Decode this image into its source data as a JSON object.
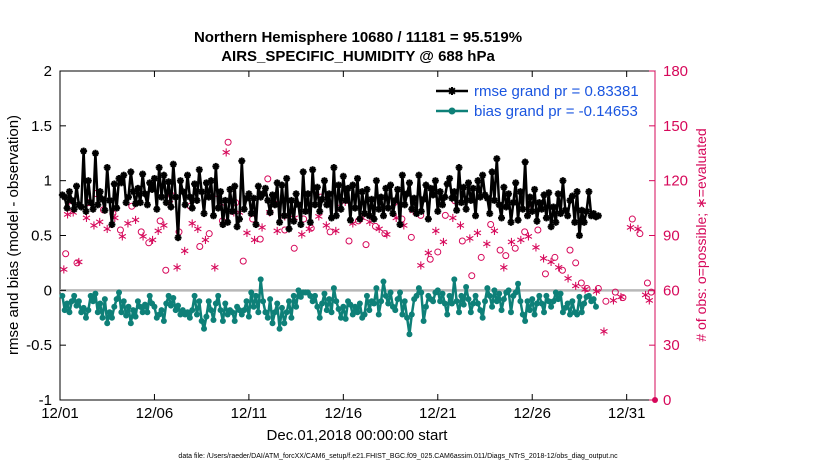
{
  "chart_data": {
    "type": "line",
    "title": "Northern Hemisphere 10680 / 11181 = 95.519%",
    "subtitle": "AIRS_SPECIFIC_HUMIDITY @ 688 hPa",
    "xlabel": "Dec.01,2018 00:00:00 start",
    "ylabel": "rmse and bias (model - observation)",
    "ylabel_right": "# of obs: o=possible; ∗=evaluated",
    "ylim": [
      -1,
      2
    ],
    "ylim_right": [
      0,
      180
    ],
    "xlim": [
      0,
      31.5
    ],
    "x_ticks": [
      0,
      5,
      10,
      15,
      20,
      25,
      30
    ],
    "x_tick_labels": [
      "12/01",
      "12/06",
      "12/11",
      "12/16",
      "12/21",
      "12/26",
      "12/31"
    ],
    "y_ticks": [
      -1,
      -0.5,
      0,
      0.5,
      1,
      1.5,
      2
    ],
    "y_tick_labels": [
      "-1",
      "-0.5",
      "0",
      "0.5",
      "1",
      "1.5",
      "2"
    ],
    "y_ticks_right": [
      0,
      30,
      60,
      90,
      120,
      150,
      180
    ],
    "y_tick_labels_right": [
      "0",
      "30",
      "60",
      "90",
      "120",
      "150",
      "180"
    ],
    "legend": [
      "rmse grand pr = 0.83381",
      "bias grand pr = -0.14653"
    ],
    "footer": "data file: /Users/raeder/DAI/ATM_forcXX/CAM6_setup/f.e21.FHIST_BGC.f09_025.CAM6assim.011/Diags_NTrS_2018-12/obs_diag_output.nc",
    "series": [
      {
        "name": "rmse",
        "color": "#000000",
        "values": [
          0.87,
          0.85,
          0.75,
          0.9,
          0.82,
          0.74,
          0.95,
          0.78,
          0.76,
          1.27,
          0.72,
          1.0,
          0.8,
          0.74,
          1.25,
          0.78,
          0.9,
          0.83,
          0.73,
          1.12,
          0.82,
          0.6,
          0.97,
          0.75,
          1.02,
          0.98,
          1.05,
          0.8,
          0.85,
          1.08,
          0.9,
          0.79,
          0.93,
          0.8,
          1.06,
          0.88,
          0.78,
          0.98,
          0.92,
          1.02,
          0.74,
          1.12,
          0.85,
          1.05,
          0.8,
          0.99,
          0.76,
          1.15,
          0.85,
          0.48,
          1.0,
          0.9,
          0.78,
          1.05,
          0.85,
          0.75,
          0.97,
          0.82,
          1.1,
          0.9,
          0.7,
          0.98,
          0.85,
          1.0,
          0.68,
          1.13,
          0.75,
          0.9,
          0.6,
          0.82,
          0.62,
          0.92,
          0.72,
          0.95,
          0.58,
          0.65,
          1.18,
          0.74,
          0.84,
          0.88,
          0.7,
          0.84,
          0.6,
          0.95,
          0.85,
          0.88,
          0.93,
          0.82,
          0.71,
          0.87,
          0.78,
          0.98,
          0.62,
          0.96,
          0.68,
          1.02,
          0.56,
          0.82,
          0.63,
          0.88,
          0.78,
          0.6,
          1.08,
          0.72,
          0.88,
          0.62,
          1.1,
          0.78,
          0.94,
          0.72,
          0.83,
          1.0,
          0.78,
          0.88,
          0.66,
          1.12,
          0.68,
          0.96,
          0.74,
          1.04,
          0.82,
          0.93,
          0.64,
          0.96,
          0.75,
          1.02,
          0.65,
          0.9,
          0.7,
          0.92,
          0.68,
          0.83,
          0.65,
          1.0,
          0.74,
          0.85,
          0.68,
          0.93,
          0.75,
          0.96,
          0.7,
          0.82,
          0.92,
          0.6,
          1.05,
          0.78,
          0.88,
          0.98,
          0.74,
          0.84,
          0.7,
          1.05,
          0.72,
          0.83,
          0.96,
          0.65,
          0.93,
          0.87,
          1.0,
          0.72,
          0.9,
          0.78,
          0.85,
          0.97,
          1.02,
          0.84,
          0.9,
          0.73,
          1.12,
          0.8,
          0.94,
          0.74,
          0.98,
          0.82,
          0.93,
          0.68,
          1.0,
          0.85,
          1.05,
          0.87,
          0.84,
          0.7,
          1.08,
          0.82,
          1.2,
          0.78,
          0.66,
          0.94,
          0.76,
          0.88,
          0.62,
          0.8,
          0.98,
          0.64,
          0.9,
          0.74,
          1.17,
          0.68,
          0.85,
          0.72,
          0.92,
          0.63,
          0.8,
          0.74,
          0.87,
          0.66,
          0.89,
          0.58,
          0.76,
          0.62,
          0.88,
          0.7,
          1.0,
          0.73,
          0.68,
          0.82,
          0.86,
          0.62,
          0.9,
          0.5,
          0.73,
          0.62,
          0.72,
          0.9,
          0.68,
          0.7,
          0.67,
          0.68
        ],
        "x_start": 0.125,
        "x_step": 0.125
      },
      {
        "name": "bias",
        "color": "#0e8078",
        "values": [
          -0.05,
          -0.18,
          -0.12,
          -0.2,
          -0.1,
          -0.05,
          -0.14,
          -0.1,
          -0.2,
          -0.16,
          -0.25,
          -0.18,
          -0.05,
          -0.1,
          -0.03,
          -0.2,
          -0.12,
          -0.25,
          -0.08,
          -0.3,
          -0.2,
          -0.25,
          -0.15,
          -0.08,
          -0.02,
          -0.2,
          -0.1,
          -0.23,
          -0.15,
          -0.3,
          -0.18,
          -0.24,
          -0.1,
          -0.15,
          -0.2,
          -0.13,
          -0.2,
          -0.05,
          -0.12,
          -0.15,
          -0.25,
          -0.22,
          -0.18,
          -0.28,
          -0.12,
          -0.05,
          -0.14,
          -0.07,
          -0.18,
          -0.14,
          -0.22,
          -0.18,
          -0.22,
          -0.2,
          -0.25,
          -0.18,
          -0.05,
          -0.22,
          -0.1,
          -0.28,
          -0.35,
          -0.24,
          -0.1,
          -0.18,
          -0.27,
          -0.12,
          -0.05,
          -0.18,
          -0.28,
          -0.12,
          -0.22,
          -0.18,
          -0.2,
          -0.28,
          -0.15,
          -0.18,
          -0.22,
          -0.18,
          -0.1,
          -0.24,
          -0.02,
          -0.15,
          -0.05,
          -0.2,
          0.1,
          -0.1,
          -0.2,
          -0.25,
          -0.08,
          -0.3,
          -0.2,
          -0.12,
          -0.35,
          -0.16,
          -0.3,
          -0.2,
          -0.1,
          -0.25,
          -0.05,
          -0.15,
          0.0,
          -0.06,
          -0.02,
          -0.02,
          -0.02,
          -0.05,
          -0.1,
          -0.05,
          -0.15,
          -0.25,
          -0.12,
          -0.03,
          -0.18,
          -0.08,
          -0.2,
          0.02,
          -0.1,
          -0.17,
          -0.25,
          -0.15,
          -0.26,
          -0.1,
          -0.13,
          -0.22,
          -0.15,
          -0.2,
          -0.12,
          -0.25,
          -0.22,
          -0.05,
          -0.18,
          -0.1,
          -0.12,
          0.02,
          -0.22,
          -0.1,
          0.08,
          -0.05,
          -0.12,
          -0.02,
          -0.15,
          -0.18,
          -0.08,
          -0.02,
          -0.22,
          -0.1,
          -0.25,
          -0.4,
          -0.22,
          -0.08,
          -0.05,
          0.02,
          -0.02,
          -0.28,
          -0.15,
          -0.05,
          -0.08,
          -0.1,
          -0.02,
          0.0,
          -0.1,
          -0.03,
          -0.12,
          -0.22,
          -0.05,
          -0.12,
          0.1,
          -0.1,
          -0.2,
          -0.05,
          -0.13,
          0.03,
          -0.08,
          -0.2,
          -0.12,
          -0.05,
          -0.12,
          -0.18,
          -0.25,
          -0.1,
          0.02,
          -0.05,
          -0.15,
          0.0,
          -0.1,
          -0.03,
          -0.18,
          -0.08,
          -0.02,
          0.0,
          -0.2,
          -0.05,
          -0.02,
          0.06,
          -0.1,
          -0.22,
          -0.28,
          -0.1,
          -0.18,
          -0.08,
          -0.22,
          -0.12,
          -0.05,
          -0.12,
          -0.2,
          -0.05,
          -0.1,
          -0.15,
          -0.1,
          -0.02,
          -0.08,
          -0.03,
          -0.2,
          -0.16,
          -0.12,
          -0.22,
          -0.1,
          -0.2,
          -0.22,
          -0.06,
          -0.2,
          -0.12,
          -0.06,
          -0.05,
          -0.1,
          -0.08,
          -0.15
        ],
        "x_start": 0.125,
        "x_step": 0.125
      },
      {
        "name": "obs possible",
        "marker": "o",
        "color": "#d6085a",
        "axis": "right",
        "points": [
          [
            0.3,
            80
          ],
          [
            0.6,
            106
          ],
          [
            0.9,
            75
          ],
          [
            1.5,
            108
          ],
          [
            1.9,
            113
          ],
          [
            2.3,
            104
          ],
          [
            2.8,
            102
          ],
          [
            3.2,
            93
          ],
          [
            3.8,
            106
          ],
          [
            4.3,
            92
          ],
          [
            4.7,
            86
          ],
          [
            5.3,
            98
          ],
          [
            5.6,
            71
          ],
          [
            5.9,
            112
          ],
          [
            6.3,
            92
          ],
          [
            6.9,
            106
          ],
          [
            7.4,
            84
          ],
          [
            7.9,
            91
          ],
          [
            8.3,
            113
          ],
          [
            8.6,
            98
          ],
          [
            8.9,
            141
          ],
          [
            9.3,
            108
          ],
          [
            9.7,
            76
          ],
          [
            10.2,
            99
          ],
          [
            10.6,
            88
          ],
          [
            11.0,
            121
          ],
          [
            11.4,
            110
          ],
          [
            11.9,
            93
          ],
          [
            12.4,
            83
          ],
          [
            12.9,
            99
          ],
          [
            13.3,
            94
          ],
          [
            13.8,
            111
          ],
          [
            14.3,
            92
          ],
          [
            14.8,
            105
          ],
          [
            15.3,
            87
          ],
          [
            15.8,
            98
          ],
          [
            16.2,
            85
          ],
          [
            16.7,
            95
          ],
          [
            17.2,
            91
          ],
          [
            17.7,
            108
          ],
          [
            18.1,
            99
          ],
          [
            18.6,
            89
          ],
          [
            19.1,
            101
          ],
          [
            19.6,
            77
          ],
          [
            20.0,
            81
          ],
          [
            20.4,
            101
          ],
          [
            20.9,
            109
          ],
          [
            21.3,
            87
          ],
          [
            21.8,
            68
          ],
          [
            22.3,
            78
          ],
          [
            22.8,
            96
          ],
          [
            23.3,
            82
          ],
          [
            23.6,
            79
          ],
          [
            24.1,
            83
          ],
          [
            24.6,
            92
          ],
          [
            24.9,
            104
          ],
          [
            25.3,
            93
          ],
          [
            25.7,
            69
          ],
          [
            26.2,
            78
          ],
          [
            26.6,
            71
          ],
          [
            27.0,
            82
          ],
          [
            27.3,
            75
          ],
          [
            27.6,
            64
          ],
          [
            27.9,
            61
          ],
          [
            28.5,
            61
          ],
          [
            28.9,
            54
          ],
          [
            29.4,
            59
          ],
          [
            29.8,
            56
          ],
          [
            30.3,
            99
          ],
          [
            30.7,
            91
          ],
          [
            31.1,
            64
          ],
          [
            31.3,
            59
          ]
        ]
      },
      {
        "name": "obs evaluated",
        "marker": "*",
        "color": "#d6085a",
        "axis": "right",
        "points": [
          [
            0.2,
            72
          ],
          [
            0.4,
            102
          ],
          [
            0.7,
            103
          ],
          [
            1.0,
            76
          ],
          [
            1.4,
            100
          ],
          [
            1.8,
            96
          ],
          [
            2.1,
            98
          ],
          [
            2.5,
            94
          ],
          [
            2.9,
            100
          ],
          [
            3.3,
            90
          ],
          [
            3.6,
            97
          ],
          [
            4.0,
            99
          ],
          [
            4.4,
            90
          ],
          [
            4.9,
            88
          ],
          [
            5.2,
            93
          ],
          [
            5.5,
            96
          ],
          [
            5.8,
            108
          ],
          [
            6.2,
            73
          ],
          [
            6.6,
            82
          ],
          [
            7.0,
            97
          ],
          [
            7.3,
            94
          ],
          [
            7.7,
            88
          ],
          [
            8.2,
            73
          ],
          [
            8.5,
            108
          ],
          [
            8.8,
            136
          ],
          [
            9.2,
            103
          ],
          [
            9.5,
            103
          ],
          [
            9.9,
            92
          ],
          [
            10.3,
            88
          ],
          [
            10.7,
            95
          ],
          [
            11.1,
            103
          ],
          [
            11.5,
            93
          ],
          [
            11.9,
            101
          ],
          [
            12.4,
            100
          ],
          [
            12.8,
            91
          ],
          [
            13.2,
            94
          ],
          [
            13.7,
            101
          ],
          [
            14.1,
            96
          ],
          [
            14.6,
            93
          ],
          [
            15.1,
            109
          ],
          [
            15.5,
            97
          ],
          [
            16.0,
            100
          ],
          [
            16.4,
            98
          ],
          [
            16.9,
            94
          ],
          [
            17.3,
            91
          ],
          [
            17.8,
            100
          ],
          [
            18.2,
            96
          ],
          [
            18.7,
            104
          ],
          [
            19.1,
            74
          ],
          [
            19.5,
            81
          ],
          [
            19.9,
            93
          ],
          [
            20.3,
            87
          ],
          [
            20.8,
            100
          ],
          [
            21.2,
            96
          ],
          [
            21.7,
            89
          ],
          [
            22.1,
            92
          ],
          [
            22.6,
            86
          ],
          [
            23.0,
            93
          ],
          [
            23.5,
            73
          ],
          [
            23.9,
            87
          ],
          [
            24.4,
            88
          ],
          [
            24.8,
            90
          ],
          [
            25.2,
            84
          ],
          [
            25.6,
            78
          ],
          [
            26.0,
            76
          ],
          [
            26.4,
            73
          ],
          [
            26.9,
            67
          ],
          [
            27.3,
            63
          ],
          [
            27.8,
            61
          ],
          [
            28.4,
            60
          ],
          [
            28.8,
            38
          ],
          [
            29.3,
            55
          ],
          [
            29.7,
            57
          ],
          [
            30.2,
            95
          ],
          [
            30.6,
            94
          ],
          [
            31.0,
            58
          ],
          [
            31.2,
            55
          ]
        ]
      }
    ]
  }
}
